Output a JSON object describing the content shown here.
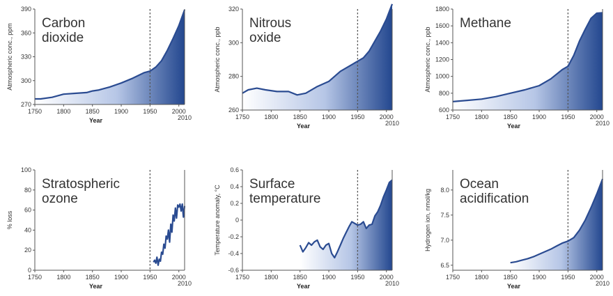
{
  "chart_data": [
    {
      "type": "area",
      "title_lines": [
        "Carbon",
        "dioxide"
      ],
      "xlabel": "Year",
      "ylabel": "Atmospheric conc., ppm",
      "xlim": [
        1750,
        2010
      ],
      "ylim": [
        270,
        390
      ],
      "x_ticks": [
        "1750",
        "1800",
        "1850",
        "1900",
        "1950",
        "2000"
      ],
      "x_end_label": "2010",
      "y_ticks": [
        "270",
        "300",
        "330",
        "360",
        "390"
      ],
      "marker_year": 1950,
      "x": [
        1750,
        1760,
        1780,
        1800,
        1820,
        1840,
        1850,
        1860,
        1880,
        1900,
        1920,
        1940,
        1950,
        1960,
        1970,
        1980,
        1990,
        2000,
        2010
      ],
      "y": [
        277,
        277,
        279,
        283,
        284,
        285,
        287,
        288,
        292,
        297,
        303,
        310,
        312,
        317,
        325,
        338,
        353,
        369,
        389
      ]
    },
    {
      "type": "area",
      "title_lines": [
        "Nitrous",
        "oxide"
      ],
      "xlabel": "Year",
      "ylabel": "Atmospheric conc., ppb",
      "xlim": [
        1750,
        2010
      ],
      "ylim": [
        260,
        320
      ],
      "x_ticks": [
        "1750",
        "1800",
        "1850",
        "1900",
        "1950",
        "2000"
      ],
      "x_end_label": "2010",
      "y_ticks": [
        "260",
        "280",
        "300",
        "320"
      ],
      "marker_year": 1950,
      "x": [
        1750,
        1760,
        1775,
        1790,
        1810,
        1830,
        1845,
        1860,
        1880,
        1900,
        1920,
        1940,
        1950,
        1960,
        1970,
        1980,
        1990,
        2000,
        2010
      ],
      "y": [
        270,
        272,
        273,
        272,
        271,
        271,
        269,
        270,
        274,
        277,
        283,
        287,
        289,
        291,
        295,
        301,
        307,
        314,
        323
      ]
    },
    {
      "type": "area",
      "title_lines": [
        "Methane"
      ],
      "xlabel": "Year",
      "ylabel": "Atmospheric conc., ppb",
      "xlim": [
        1750,
        2010
      ],
      "ylim": [
        600,
        1800
      ],
      "x_ticks": [
        "1750",
        "1800",
        "1850",
        "1900",
        "1950",
        "2000"
      ],
      "x_end_label": "2010",
      "y_ticks": [
        "600",
        "800",
        "1000",
        "1200",
        "1400",
        "1600",
        "1800"
      ],
      "marker_year": 1950,
      "x": [
        1750,
        1775,
        1800,
        1825,
        1850,
        1875,
        1900,
        1920,
        1940,
        1950,
        1960,
        1970,
        1980,
        1990,
        2000,
        2010
      ],
      "y": [
        700,
        715,
        730,
        760,
        800,
        840,
        890,
        970,
        1080,
        1120,
        1250,
        1420,
        1560,
        1690,
        1750,
        1755
      ]
    },
    {
      "type": "line",
      "title_lines": [
        "Stratospheric",
        "ozone"
      ],
      "xlabel": "Year",
      "ylabel": "% loss",
      "xlim": [
        1750,
        2010
      ],
      "ylim": [
        0,
        100
      ],
      "x_ticks": [
        "1750",
        "1800",
        "1850",
        "1900",
        "1950",
        "2000"
      ],
      "x_end_label": "2010",
      "y_ticks": [
        "0",
        "20",
        "40",
        "60",
        "80",
        "100"
      ],
      "marker_year": 1950,
      "x": [
        1956,
        1958,
        1960,
        1962,
        1964,
        1966,
        1968,
        1970,
        1972,
        1974,
        1976,
        1978,
        1980,
        1982,
        1984,
        1986,
        1988,
        1990,
        1992,
        1994,
        1996,
        1998,
        2000,
        2002,
        2004,
        2006,
        2008,
        2010
      ],
      "y": [
        8,
        10,
        7,
        13,
        5,
        11,
        9,
        18,
        16,
        26,
        22,
        34,
        31,
        40,
        28,
        46,
        38,
        55,
        49,
        62,
        52,
        65,
        63,
        66,
        59,
        66,
        53,
        64
      ]
    },
    {
      "type": "area",
      "title_lines": [
        "Surface",
        "temperature"
      ],
      "xlabel": "Year",
      "ylabel": "Temperature anomaly, °C",
      "xlim": [
        1750,
        2010
      ],
      "ylim": [
        -0.6,
        0.6
      ],
      "x_ticks": [
        "1750",
        "1800",
        "1850",
        "1900",
        "1950",
        "2000"
      ],
      "x_end_label": "2010",
      "y_ticks": [
        "-0.6",
        "-0.4",
        "-0.2",
        "0",
        "0.2",
        "0.4",
        "0.6"
      ],
      "marker_year": 1950,
      "x": [
        1850,
        1855,
        1860,
        1865,
        1870,
        1875,
        1880,
        1885,
        1890,
        1895,
        1900,
        1905,
        1910,
        1915,
        1920,
        1925,
        1930,
        1935,
        1940,
        1945,
        1950,
        1955,
        1960,
        1965,
        1970,
        1975,
        1980,
        1985,
        1990,
        1995,
        2000,
        2005,
        2010
      ],
      "y": [
        -0.3,
        -0.38,
        -0.33,
        -0.27,
        -0.3,
        -0.26,
        -0.24,
        -0.32,
        -0.35,
        -0.3,
        -0.28,
        -0.4,
        -0.45,
        -0.38,
        -0.3,
        -0.22,
        -0.15,
        -0.08,
        -0.02,
        -0.04,
        -0.06,
        -0.05,
        -0.02,
        -0.1,
        -0.06,
        -0.05,
        0.05,
        0.1,
        0.18,
        0.28,
        0.36,
        0.45,
        0.48
      ]
    },
    {
      "type": "area",
      "title_lines": [
        "Ocean",
        "acidification"
      ],
      "xlabel": "Year",
      "ylabel": "Hydrogen ion, nmol/kg",
      "xlim": [
        1750,
        2010
      ],
      "ylim": [
        6.4,
        8.4
      ],
      "x_ticks": [
        "1750",
        "1800",
        "1850",
        "1900",
        "1950",
        "2000"
      ],
      "x_end_label": "2010",
      "y_ticks": [
        "6.5",
        "7.0",
        "7.5",
        "8.0"
      ],
      "marker_year": 1950,
      "x": [
        1850,
        1860,
        1870,
        1880,
        1890,
        1900,
        1910,
        1920,
        1930,
        1940,
        1950,
        1960,
        1970,
        1980,
        1990,
        2000,
        2010
      ],
      "y": [
        6.55,
        6.57,
        6.6,
        6.63,
        6.67,
        6.72,
        6.77,
        6.82,
        6.88,
        6.94,
        6.98,
        7.05,
        7.2,
        7.4,
        7.65,
        7.92,
        8.22
      ]
    }
  ]
}
